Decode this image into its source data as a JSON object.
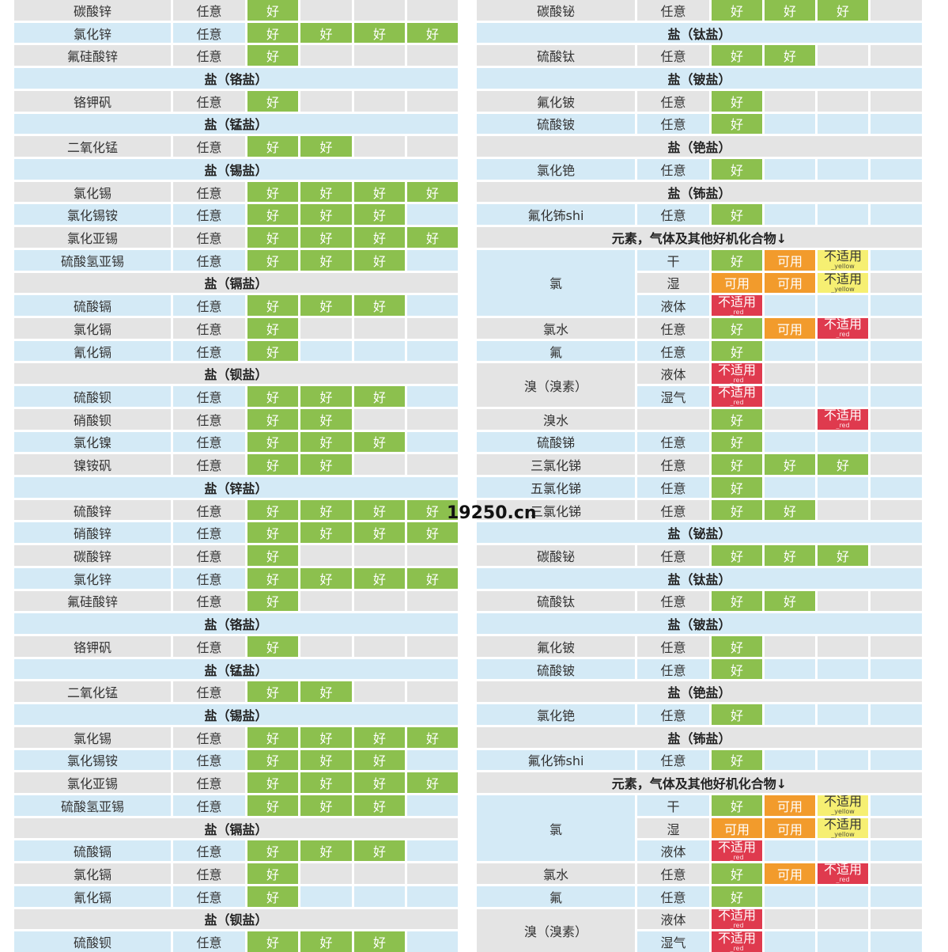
{
  "colors": {
    "gray": "#e4e4e4",
    "blue": "#d4eaf6",
    "好": "#8cc04e",
    "可用": "#f29b2c",
    "不适用_yellow": "#f6ef72",
    "不适用_red": "#df3a4e"
  },
  "watermark": "19250.cn",
  "left": {
    "rows": [
      {
        "type": "item",
        "name": "碳酸锌",
        "cond": "任意",
        "cells": [
          "好",
          "",
          "",
          ""
        ]
      },
      {
        "type": "item",
        "name": "氯化锌",
        "cond": "任意",
        "cells": [
          "好",
          "好",
          "好",
          "好"
        ]
      },
      {
        "type": "item",
        "name": "氟硅酸锌",
        "cond": "任意",
        "cells": [
          "好",
          "",
          "",
          ""
        ]
      },
      {
        "type": "header",
        "label": "盐（铬盐）"
      },
      {
        "type": "item",
        "name": "铬钾矾",
        "cond": "任意",
        "cells": [
          "好",
          "",
          "",
          ""
        ]
      },
      {
        "type": "header",
        "label": "盐（锰盐）"
      },
      {
        "type": "item",
        "name": "二氧化锰",
        "cond": "任意",
        "cells": [
          "好",
          "好",
          "",
          ""
        ]
      },
      {
        "type": "header",
        "label": "盐（锡盐）"
      },
      {
        "type": "item",
        "name": "氯化锡",
        "cond": "任意",
        "cells": [
          "好",
          "好",
          "好",
          "好"
        ]
      },
      {
        "type": "item",
        "name": "氯化锡铵",
        "cond": "任意",
        "cells": [
          "好",
          "好",
          "好",
          ""
        ]
      },
      {
        "type": "item",
        "name": "氯化亚锡",
        "cond": "任意",
        "cells": [
          "好",
          "好",
          "好",
          "好"
        ]
      },
      {
        "type": "item",
        "name": "硫酸氢亚锡",
        "cond": "任意",
        "cells": [
          "好",
          "好",
          "好",
          ""
        ]
      },
      {
        "type": "header",
        "label": "盐（镉盐）"
      },
      {
        "type": "item",
        "name": "硫酸镉",
        "cond": "任意",
        "cells": [
          "好",
          "好",
          "好",
          ""
        ]
      },
      {
        "type": "item",
        "name": "氯化镉",
        "cond": "任意",
        "cells": [
          "好",
          "",
          "",
          ""
        ]
      },
      {
        "type": "item",
        "name": "氰化镉",
        "cond": "任意",
        "cells": [
          "好",
          "",
          "",
          ""
        ]
      },
      {
        "type": "header",
        "label": "盐（钡盐）"
      },
      {
        "type": "item",
        "name": "硫酸钡",
        "cond": "任意",
        "cells": [
          "好",
          "好",
          "好",
          ""
        ]
      },
      {
        "type": "item",
        "name": "硝酸钡",
        "cond": "任意",
        "cells": [
          "好",
          "好",
          "",
          ""
        ]
      },
      {
        "type": "item",
        "name": "氯化镍",
        "cond": "任意",
        "cells": [
          "好",
          "好",
          "好",
          ""
        ]
      },
      {
        "type": "item",
        "name": "镍铵矾",
        "cond": "任意",
        "cells": [
          "好",
          "好",
          "",
          ""
        ]
      },
      {
        "type": "header",
        "label": "盐（锌盐）"
      },
      {
        "type": "item",
        "name": "硫酸锌",
        "cond": "任意",
        "cells": [
          "好",
          "好",
          "好",
          "好"
        ]
      },
      {
        "type": "item",
        "name": "硝酸锌",
        "cond": "任意",
        "cells": [
          "好",
          "好",
          "好",
          "好"
        ]
      },
      {
        "type": "item",
        "name": "碳酸锌",
        "cond": "任意",
        "cells": [
          "好",
          "",
          "",
          ""
        ]
      },
      {
        "type": "item",
        "name": "氯化锌",
        "cond": "任意",
        "cells": [
          "好",
          "好",
          "好",
          "好"
        ]
      },
      {
        "type": "item",
        "name": "氟硅酸锌",
        "cond": "任意",
        "cells": [
          "好",
          "",
          "",
          ""
        ]
      },
      {
        "type": "header",
        "label": "盐（铬盐）"
      },
      {
        "type": "item",
        "name": "铬钾矾",
        "cond": "任意",
        "cells": [
          "好",
          "",
          "",
          ""
        ]
      },
      {
        "type": "header",
        "label": "盐（锰盐）"
      },
      {
        "type": "item",
        "name": "二氧化锰",
        "cond": "任意",
        "cells": [
          "好",
          "好",
          "",
          ""
        ]
      },
      {
        "type": "header",
        "label": "盐（锡盐）"
      },
      {
        "type": "item",
        "name": "氯化锡",
        "cond": "任意",
        "cells": [
          "好",
          "好",
          "好",
          "好"
        ]
      },
      {
        "type": "item",
        "name": "氯化锡铵",
        "cond": "任意",
        "cells": [
          "好",
          "好",
          "好",
          ""
        ]
      },
      {
        "type": "item",
        "name": "氯化亚锡",
        "cond": "任意",
        "cells": [
          "好",
          "好",
          "好",
          "好"
        ]
      },
      {
        "type": "item",
        "name": "硫酸氢亚锡",
        "cond": "任意",
        "cells": [
          "好",
          "好",
          "好",
          ""
        ]
      },
      {
        "type": "header",
        "label": "盐（镉盐）"
      },
      {
        "type": "item",
        "name": "硫酸镉",
        "cond": "任意",
        "cells": [
          "好",
          "好",
          "好",
          ""
        ]
      },
      {
        "type": "item",
        "name": "氯化镉",
        "cond": "任意",
        "cells": [
          "好",
          "",
          "",
          ""
        ]
      },
      {
        "type": "item",
        "name": "氰化镉",
        "cond": "任意",
        "cells": [
          "好",
          "",
          "",
          ""
        ]
      },
      {
        "type": "header",
        "label": "盐（钡盐）"
      },
      {
        "type": "item",
        "name": "硫酸钡",
        "cond": "任意",
        "cells": [
          "好",
          "好",
          "好",
          ""
        ]
      }
    ]
  },
  "right": {
    "rows": [
      {
        "type": "item",
        "name": "碳酸铋",
        "cond": "任意",
        "cells": [
          "好",
          "好",
          "好",
          ""
        ]
      },
      {
        "type": "header",
        "label": "盐（钛盐）"
      },
      {
        "type": "item",
        "name": "硫酸钛",
        "cond": "任意",
        "cells": [
          "好",
          "好",
          "",
          ""
        ]
      },
      {
        "type": "header",
        "label": "盐（铍盐）"
      },
      {
        "type": "item",
        "name": "氟化铍",
        "cond": "任意",
        "cells": [
          "好",
          "",
          "",
          ""
        ]
      },
      {
        "type": "item",
        "name": "硫酸铍",
        "cond": "任意",
        "cells": [
          "好",
          "",
          "",
          ""
        ]
      },
      {
        "type": "header",
        "label": "盐（铯盐）"
      },
      {
        "type": "item",
        "name": "氯化铯",
        "cond": "任意",
        "cells": [
          "好",
          "",
          "",
          ""
        ]
      },
      {
        "type": "header",
        "label": "盐（钸盐）"
      },
      {
        "type": "item",
        "name": "氟化钸shi",
        "cond": "任意",
        "cells": [
          "好",
          "",
          "",
          ""
        ]
      },
      {
        "type": "header",
        "label": "元素，气体及其他好机化合物↓"
      },
      {
        "type": "group",
        "name": "氯",
        "rows": [
          {
            "cond": "干",
            "cells": [
              "好",
              "可用",
              "不适用_yellow",
              ""
            ]
          },
          {
            "cond": "湿",
            "cells": [
              "可用",
              "可用",
              "不适用_yellow",
              ""
            ]
          },
          {
            "cond": "液体",
            "cells": [
              "不适用_red",
              "",
              "",
              ""
            ]
          }
        ]
      },
      {
        "type": "item",
        "name": "氯水",
        "cond": "任意",
        "cells": [
          "好",
          "可用",
          "不适用_red",
          ""
        ]
      },
      {
        "type": "item",
        "name": "氟",
        "cond": "任意",
        "cells": [
          "好",
          "",
          "",
          ""
        ]
      },
      {
        "type": "group",
        "name": "溴（溴素）",
        "rows": [
          {
            "cond": "液体",
            "cells": [
              "不适用_red",
              "",
              "",
              ""
            ]
          },
          {
            "cond": "湿气",
            "cells": [
              "不适用_red",
              "",
              "",
              ""
            ]
          }
        ]
      },
      {
        "type": "item",
        "name": "溴水",
        "cond": "",
        "cells": [
          "好",
          "",
          "不适用_red",
          ""
        ]
      },
      {
        "type": "item",
        "name": "硫酸锑",
        "cond": "任意",
        "cells": [
          "好",
          "",
          "",
          ""
        ]
      },
      {
        "type": "item",
        "name": "三氯化锑",
        "cond": "任意",
        "cells": [
          "好",
          "好",
          "好",
          ""
        ]
      },
      {
        "type": "item",
        "name": "五氯化锑",
        "cond": "任意",
        "cells": [
          "好",
          "",
          "",
          ""
        ]
      },
      {
        "type": "item",
        "name": "三氯化锑",
        "cond": "任意",
        "cells": [
          "好",
          "好",
          "",
          ""
        ]
      },
      {
        "type": "header",
        "label": "盐（铋盐）"
      },
      {
        "type": "item",
        "name": "碳酸铋",
        "cond": "任意",
        "cells": [
          "好",
          "好",
          "好",
          ""
        ]
      },
      {
        "type": "header",
        "label": "盐（钛盐）"
      },
      {
        "type": "item",
        "name": "硫酸钛",
        "cond": "任意",
        "cells": [
          "好",
          "好",
          "",
          ""
        ]
      },
      {
        "type": "header",
        "label": "盐（铍盐）"
      },
      {
        "type": "item",
        "name": "氟化铍",
        "cond": "任意",
        "cells": [
          "好",
          "",
          "",
          ""
        ]
      },
      {
        "type": "item",
        "name": "硫酸铍",
        "cond": "任意",
        "cells": [
          "好",
          "",
          "",
          ""
        ]
      },
      {
        "type": "header",
        "label": "盐（铯盐）"
      },
      {
        "type": "item",
        "name": "氯化铯",
        "cond": "任意",
        "cells": [
          "好",
          "",
          "",
          ""
        ]
      },
      {
        "type": "header",
        "label": "盐（钸盐）"
      },
      {
        "type": "item",
        "name": "氟化钸shi",
        "cond": "任意",
        "cells": [
          "好",
          "",
          "",
          ""
        ]
      },
      {
        "type": "header",
        "label": "元素，气体及其他好机化合物↓"
      },
      {
        "type": "group",
        "name": "氯",
        "rows": [
          {
            "cond": "干",
            "cells": [
              "好",
              "可用",
              "不适用_yellow",
              ""
            ]
          },
          {
            "cond": "湿",
            "cells": [
              "可用",
              "可用",
              "不适用_yellow",
              ""
            ]
          },
          {
            "cond": "液体",
            "cells": [
              "不适用_red",
              "",
              "",
              ""
            ]
          }
        ]
      },
      {
        "type": "item",
        "name": "氯水",
        "cond": "任意",
        "cells": [
          "好",
          "可用",
          "不适用_red",
          ""
        ]
      },
      {
        "type": "item",
        "name": "氟",
        "cond": "任意",
        "cells": [
          "好",
          "",
          "",
          ""
        ]
      },
      {
        "type": "group",
        "name": "溴（溴素）",
        "rows": [
          {
            "cond": "液体",
            "cells": [
              "不适用_red",
              "",
              "",
              ""
            ]
          },
          {
            "cond": "湿气",
            "cells": [
              "不适用_red",
              "",
              "",
              ""
            ]
          }
        ]
      }
    ]
  }
}
